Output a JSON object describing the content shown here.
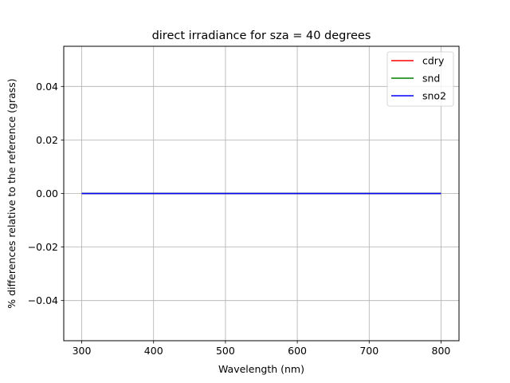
{
  "chart_data": {
    "type": "line",
    "title": "direct irradiance for sza = 40 degrees",
    "xlabel": "Wavelength (nm)",
    "ylabel": "% differences relative to the reference (grass)",
    "xlim": [
      275,
      825
    ],
    "ylim": [
      -0.055,
      0.055
    ],
    "xticks": [
      300,
      400,
      500,
      600,
      700,
      800
    ],
    "xtick_labels": [
      "300",
      "400",
      "500",
      "600",
      "700",
      "800"
    ],
    "yticks": [
      -0.04,
      -0.02,
      0.0,
      0.02,
      0.04
    ],
    "ytick_labels": [
      "−0.04",
      "−0.02",
      "0.00",
      "0.02",
      "0.04"
    ],
    "grid": true,
    "legend_position": "upper right",
    "series": [
      {
        "name": "cdry",
        "color": "#ff0000",
        "x": [
          300,
          800
        ],
        "y": [
          0.0,
          0.0
        ]
      },
      {
        "name": "snd",
        "color": "#008000",
        "x": [
          300,
          800
        ],
        "y": [
          0.0,
          0.0
        ]
      },
      {
        "name": "sno2",
        "color": "#0000ff",
        "x": [
          300,
          800
        ],
        "y": [
          0.0,
          0.0
        ]
      }
    ]
  }
}
